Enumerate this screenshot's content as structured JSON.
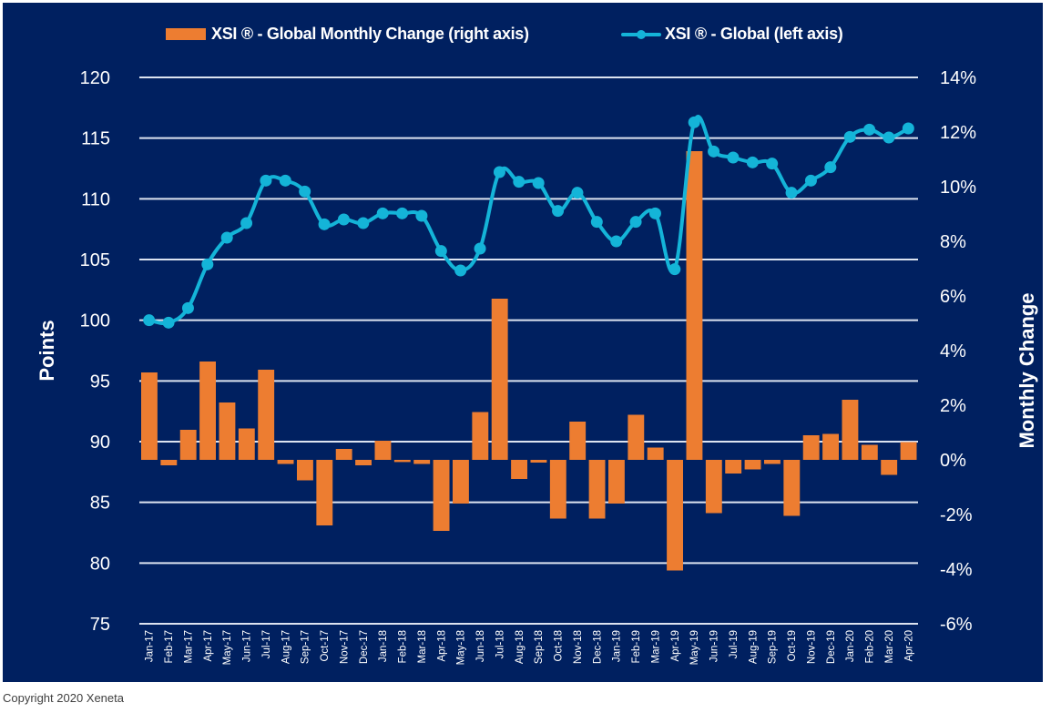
{
  "chart_data": {
    "type": "bar+line",
    "categories": [
      "Jan-17",
      "Feb-17",
      "Mar-17",
      "Apr-17",
      "May-17",
      "Jun-17",
      "Jul-17",
      "Aug-17",
      "Sep-17",
      "Oct-17",
      "Nov-17",
      "Dec-17",
      "Jan-18",
      "Feb-18",
      "Mar-18",
      "Apr-18",
      "May-18",
      "Jun-18",
      "Jul-18",
      "Aug-18",
      "Sep-18",
      "Oct-18",
      "Nov-18",
      "Dec-18",
      "Jan-19",
      "Feb-19",
      "Mar-19",
      "Apr-19",
      "May-19",
      "Jun-19",
      "Jul-19",
      "Aug-19",
      "Sep-19",
      "Oct-19",
      "Nov-19",
      "Dec-19",
      "Jan-20",
      "Feb-20",
      "Mar-20",
      "Apr-20"
    ],
    "series": [
      {
        "name": "XSI ® - Global Monthly Change (right axis)",
        "type": "bar",
        "axis": "right",
        "color": "#ED7D31",
        "unit": "%",
        "values": [
          3.2,
          -0.2,
          1.1,
          3.6,
          2.1,
          1.15,
          3.3,
          -0.15,
          -0.75,
          -2.4,
          0.4,
          -0.2,
          0.7,
          -0.08,
          -0.15,
          -2.6,
          -1.6,
          1.75,
          5.9,
          -0.7,
          -0.1,
          -2.15,
          1.4,
          -2.15,
          -1.6,
          1.65,
          0.45,
          -4.05,
          11.3,
          -1.95,
          -0.5,
          -0.35,
          -0.15,
          -2.05,
          0.9,
          0.95,
          2.2,
          0.55,
          -0.55,
          0.65
        ]
      },
      {
        "name": "XSI ® - Global (left axis)",
        "type": "line",
        "axis": "left",
        "color": "#14B4D8",
        "unit": "points",
        "values": [
          100.0,
          99.8,
          101.0,
          104.6,
          106.8,
          108.0,
          111.5,
          111.5,
          110.6,
          107.9,
          108.3,
          108.0,
          108.8,
          108.8,
          108.6,
          105.7,
          104.1,
          105.9,
          112.2,
          111.4,
          111.3,
          109.0,
          110.5,
          108.1,
          106.5,
          108.1,
          108.8,
          104.2,
          116.3,
          113.9,
          113.4,
          113.0,
          112.9,
          110.5,
          111.5,
          112.6,
          115.1,
          115.7,
          115.05,
          115.8
        ]
      }
    ],
    "title": "",
    "xlabel": "",
    "ylabel": "Points",
    "y2label": "Monthly Change",
    "ylim": [
      75,
      120
    ],
    "y2lim": [
      -6,
      14
    ],
    "yticks": [
      "120",
      "115",
      "110",
      "105",
      "100",
      "95",
      "90",
      "85",
      "80",
      "75"
    ],
    "y2ticks": [
      "14%",
      "12%",
      "10%",
      "8%",
      "6%",
      "4%",
      "2%",
      "0%",
      "-2%",
      "-4%",
      "-6%"
    ],
    "grid": true,
    "legend_position": "top-center",
    "background_color": "#002060"
  },
  "legend": {
    "bar_label": "XSI ® - Global Monthly Change (right axis)",
    "line_label": "XSI ® - Global (left axis)"
  },
  "axes": {
    "left_title": "Points",
    "right_title": "Monthly Change"
  },
  "footer": {
    "copyright": "Copyright 2020 Xeneta"
  }
}
